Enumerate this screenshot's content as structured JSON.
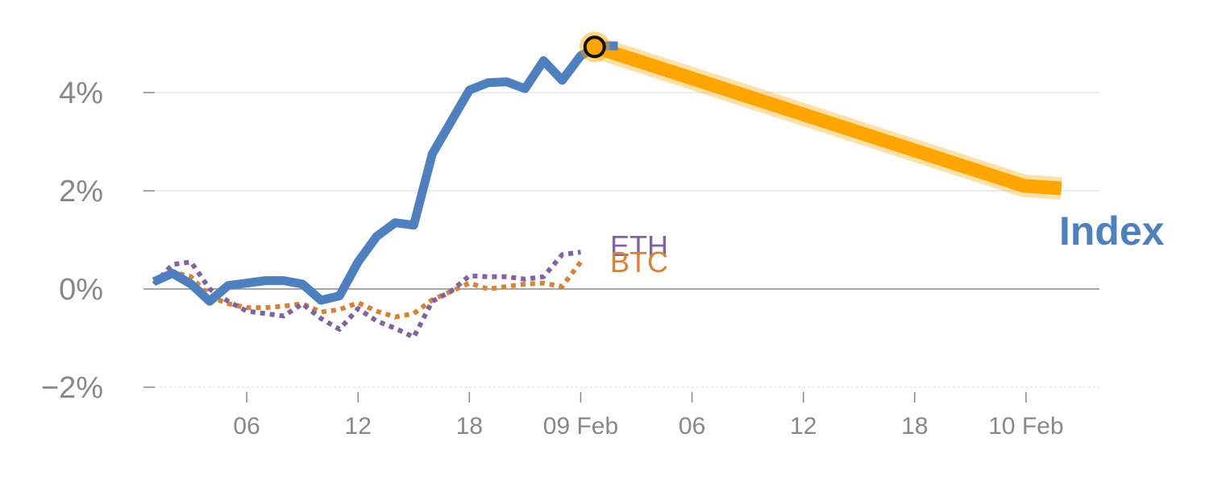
{
  "chart_data": {
    "type": "line",
    "ylim": [
      -2,
      5
    ],
    "y_ticks": [
      {
        "value": -2,
        "label": "−2%"
      },
      {
        "value": 0,
        "label": "0%"
      },
      {
        "value": 2,
        "label": "2%"
      },
      {
        "value": 4,
        "label": "4%"
      }
    ],
    "x_ticks": [
      "06",
      "12",
      "18",
      "09 Feb",
      "06",
      "12",
      "18",
      "10 Feb"
    ],
    "x_unit": "hours since 08 Feb 00:00",
    "x_tick_hours": [
      6,
      12,
      18,
      24,
      30,
      36,
      42,
      48
    ],
    "series": [
      {
        "name": "Index",
        "color": "#4e7fbf",
        "style": "solid",
        "x": [
          1,
          2,
          3,
          4,
          5,
          6,
          7,
          8,
          9,
          10,
          11,
          12,
          13,
          14,
          15,
          16,
          17,
          18,
          19,
          20,
          21,
          22,
          23,
          24,
          25,
          26
        ],
        "y": [
          0.15,
          0.32,
          0.1,
          -0.25,
          0.07,
          0.12,
          0.17,
          0.17,
          0.1,
          -0.23,
          -0.14,
          0.55,
          1.07,
          1.35,
          1.3,
          2.75,
          3.4,
          4.05,
          4.2,
          4.22,
          4.08,
          4.65,
          4.25,
          4.75,
          4.95,
          4.95
        ]
      },
      {
        "name": "ETH",
        "color": "#8064a2",
        "style": "dotted",
        "x": [
          1,
          2,
          3,
          4,
          5,
          6,
          7,
          8,
          9,
          10,
          11,
          12,
          13,
          14,
          15,
          16,
          17,
          18,
          19,
          20,
          21,
          22,
          23,
          24
        ],
        "y": [
          0.1,
          0.5,
          0.55,
          0.0,
          -0.25,
          -0.45,
          -0.5,
          -0.55,
          -0.3,
          -0.6,
          -0.82,
          -0.4,
          -0.65,
          -0.8,
          -0.98,
          -0.25,
          -0.05,
          0.27,
          0.25,
          0.25,
          0.2,
          0.25,
          0.7,
          0.75
        ]
      },
      {
        "name": "BTC",
        "color": "#d98234",
        "style": "dotted",
        "x": [
          1,
          2,
          3,
          4,
          5,
          6,
          7,
          8,
          9,
          10,
          11,
          12,
          13,
          14,
          15,
          16,
          17,
          18,
          19,
          20,
          21,
          22,
          23,
          24
        ],
        "y": [
          0.12,
          0.35,
          0.25,
          -0.15,
          -0.3,
          -0.38,
          -0.38,
          -0.35,
          -0.3,
          -0.47,
          -0.42,
          -0.28,
          -0.45,
          -0.57,
          -0.5,
          -0.22,
          -0.05,
          0.12,
          0.0,
          0.05,
          0.1,
          0.12,
          0.05,
          0.55
        ]
      }
    ],
    "forecast": {
      "color": "#ffa500",
      "x": [
        24.75,
        47.9,
        49.9
      ],
      "y": [
        4.93,
        2.1,
        2.05
      ]
    },
    "marker": {
      "x": 24.75,
      "y": 4.93,
      "fill": "#ffa500"
    },
    "label_colors": {
      "Index": "#4e7fbf",
      "ETH": "#8064a2",
      "BTC": "#d98234"
    }
  }
}
